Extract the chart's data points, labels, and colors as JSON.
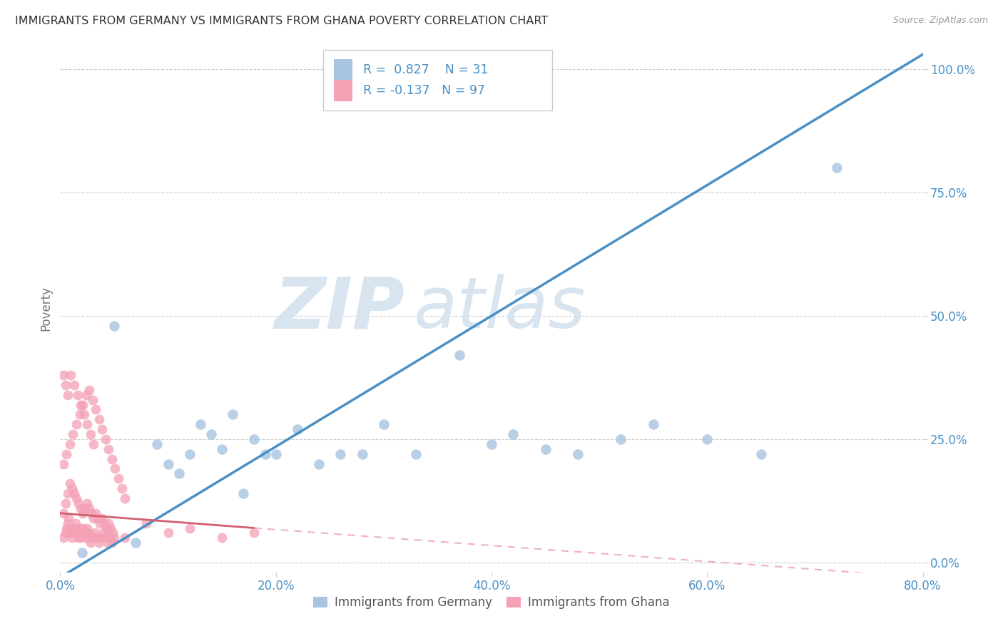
{
  "title": "IMMIGRANTS FROM GERMANY VS IMMIGRANTS FROM GHANA POVERTY CORRELATION CHART",
  "source": "Source: ZipAtlas.com",
  "ylabel": "Poverty",
  "xlabel_ticks": [
    "0.0%",
    "20.0%",
    "40.0%",
    "60.0%",
    "80.0%"
  ],
  "ylabel_ticks": [
    "0.0%",
    "25.0%",
    "50.0%",
    "75.0%",
    "100.0%"
  ],
  "xlim": [
    0.0,
    0.8
  ],
  "ylim": [
    -0.02,
    1.05
  ],
  "germany_R": 0.827,
  "germany_N": 31,
  "ghana_R": -0.137,
  "ghana_N": 97,
  "germany_color": "#a8c4e0",
  "ghana_color": "#f4a0b5",
  "germany_line_color": "#4a90c4",
  "ghana_line_solid_color": "#d06070",
  "ghana_line_dash_color": "#f0b0c0",
  "watermark_zip": "ZIP",
  "watermark_atlas": "atlas",
  "watermark_color": "#d8e4f0",
  "background_color": "#ffffff",
  "grid_color": "#cccccc",
  "title_color": "#333333",
  "axis_label_color": "#777777",
  "tick_color": "#4a90c4",
  "germany_scatter_x": [
    0.02,
    0.05,
    0.07,
    0.09,
    0.1,
    0.11,
    0.12,
    0.13,
    0.14,
    0.15,
    0.16,
    0.17,
    0.18,
    0.19,
    0.2,
    0.22,
    0.24,
    0.26,
    0.28,
    0.3,
    0.33,
    0.37,
    0.4,
    0.42,
    0.45,
    0.48,
    0.52,
    0.55,
    0.6,
    0.65,
    0.72
  ],
  "germany_scatter_y": [
    0.02,
    0.48,
    0.04,
    0.24,
    0.2,
    0.18,
    0.22,
    0.28,
    0.26,
    0.23,
    0.3,
    0.14,
    0.25,
    0.22,
    0.22,
    0.27,
    0.2,
    0.22,
    0.22,
    0.28,
    0.22,
    0.42,
    0.24,
    0.26,
    0.23,
    0.22,
    0.25,
    0.28,
    0.25,
    0.22,
    0.8
  ],
  "ghana_scatter_x": [
    0.003,
    0.005,
    0.006,
    0.007,
    0.008,
    0.009,
    0.01,
    0.011,
    0.012,
    0.013,
    0.014,
    0.015,
    0.016,
    0.017,
    0.018,
    0.019,
    0.02,
    0.021,
    0.022,
    0.023,
    0.024,
    0.025,
    0.026,
    0.027,
    0.028,
    0.03,
    0.032,
    0.034,
    0.036,
    0.038,
    0.04,
    0.042,
    0.044,
    0.046,
    0.048,
    0.05,
    0.003,
    0.005,
    0.007,
    0.009,
    0.011,
    0.013,
    0.015,
    0.017,
    0.019,
    0.021,
    0.023,
    0.025,
    0.027,
    0.029,
    0.031,
    0.033,
    0.035,
    0.037,
    0.039,
    0.041,
    0.043,
    0.045,
    0.047,
    0.049,
    0.003,
    0.006,
    0.009,
    0.012,
    0.015,
    0.018,
    0.021,
    0.024,
    0.027,
    0.03,
    0.033,
    0.036,
    0.039,
    0.042,
    0.045,
    0.048,
    0.051,
    0.054,
    0.057,
    0.06,
    0.003,
    0.005,
    0.007,
    0.01,
    0.013,
    0.016,
    0.019,
    0.022,
    0.025,
    0.028,
    0.031,
    0.06,
    0.08,
    0.1,
    0.12,
    0.15,
    0.18
  ],
  "ghana_scatter_y": [
    0.05,
    0.06,
    0.07,
    0.08,
    0.09,
    0.06,
    0.07,
    0.05,
    0.06,
    0.07,
    0.08,
    0.06,
    0.05,
    0.06,
    0.07,
    0.05,
    0.06,
    0.07,
    0.06,
    0.05,
    0.06,
    0.07,
    0.06,
    0.05,
    0.04,
    0.05,
    0.06,
    0.05,
    0.04,
    0.05,
    0.06,
    0.05,
    0.04,
    0.05,
    0.04,
    0.05,
    0.1,
    0.12,
    0.14,
    0.16,
    0.15,
    0.14,
    0.13,
    0.12,
    0.11,
    0.1,
    0.11,
    0.12,
    0.11,
    0.1,
    0.09,
    0.1,
    0.09,
    0.08,
    0.09,
    0.08,
    0.07,
    0.08,
    0.07,
    0.06,
    0.2,
    0.22,
    0.24,
    0.26,
    0.28,
    0.3,
    0.32,
    0.34,
    0.35,
    0.33,
    0.31,
    0.29,
    0.27,
    0.25,
    0.23,
    0.21,
    0.19,
    0.17,
    0.15,
    0.13,
    0.38,
    0.36,
    0.34,
    0.38,
    0.36,
    0.34,
    0.32,
    0.3,
    0.28,
    0.26,
    0.24,
    0.05,
    0.08,
    0.06,
    0.07,
    0.05,
    0.06
  ]
}
